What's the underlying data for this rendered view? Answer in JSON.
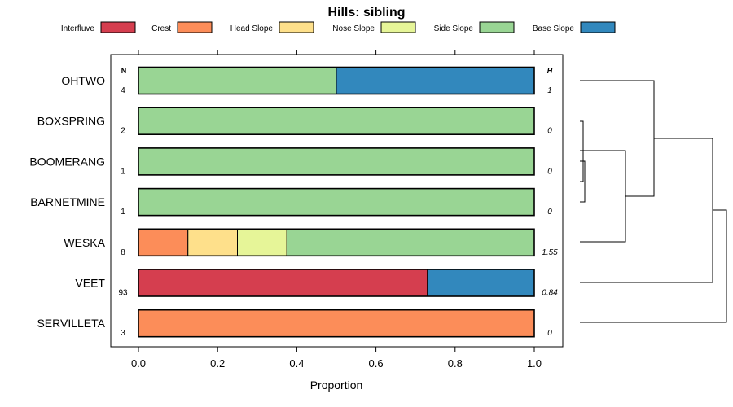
{
  "chart_data": {
    "type": "bar",
    "orientation": "horizontal",
    "stacked": true,
    "title": "Hills: sibling",
    "xlabel": "Proportion",
    "ylabel": "",
    "xlim": [
      0,
      1
    ],
    "x_ticks": [
      "0.0",
      "0.2",
      "0.4",
      "0.6",
      "0.8",
      "1.0"
    ],
    "x_tick_values": [
      0,
      0.2,
      0.4,
      0.6,
      0.8,
      1.0
    ],
    "legend": {
      "position": "top",
      "entries": [
        {
          "name": "Interfluve",
          "color": "#d53e4f"
        },
        {
          "name": "Crest",
          "color": "#fc8d59"
        },
        {
          "name": "Head Slope",
          "color": "#fee08b"
        },
        {
          "name": "Nose Slope",
          "color": "#e6f598"
        },
        {
          "name": "Side Slope",
          "color": "#99d594"
        },
        {
          "name": "Base Slope",
          "color": "#3288bd"
        }
      ]
    },
    "n_header": "N",
    "h_header": "H",
    "categories": [
      "OHTWO",
      "BOXSPRING",
      "BOOMERANG",
      "BARNETMINE",
      "WESKA",
      "VEET",
      "SERVILLETA"
    ],
    "n_values": [
      "4",
      "2",
      "1",
      "1",
      "8",
      "93",
      "3"
    ],
    "h_values": [
      "1",
      "0",
      "0",
      "0",
      "1.55",
      "0.84",
      "0"
    ],
    "series": [
      {
        "name": "Interfluve",
        "values": [
          0,
          0,
          0,
          0,
          0,
          0.73,
          0
        ]
      },
      {
        "name": "Crest",
        "values": [
          0,
          0,
          0,
          0,
          0.125,
          0,
          1.0
        ]
      },
      {
        "name": "Head Slope",
        "values": [
          0,
          0,
          0,
          0,
          0.125,
          0,
          0
        ]
      },
      {
        "name": "Nose Slope",
        "values": [
          0,
          0,
          0,
          0,
          0.125,
          0,
          0
        ]
      },
      {
        "name": "Side Slope",
        "values": [
          0.5,
          1.0,
          1.0,
          1.0,
          0.625,
          0,
          0
        ]
      },
      {
        "name": "Base Slope",
        "values": [
          0.5,
          0,
          0,
          0,
          0,
          0.27,
          0
        ]
      }
    ],
    "dendrogram": {
      "merges": [
        [
          "BOOMERANG",
          "BARNETMINE",
          0.0
        ],
        [
          "BOXSPRING",
          "BOOMERANG+BARNETMINE",
          0.02
        ],
        [
          "WESKA",
          "BOXSPRING+BOOMERANG+BARNETMINE",
          0.3
        ],
        [
          "OHTWO",
          "WESKA+BOXSPRING+BOOMERANG+BARNETMINE",
          0.5
        ],
        [
          "VEET",
          "OHTWO+WESKA+BOXSPRING+BOOMERANG+BARNETMINE",
          0.9
        ],
        [
          "SERVILLETA",
          "ALL_OTHERS",
          1.0
        ]
      ]
    }
  }
}
